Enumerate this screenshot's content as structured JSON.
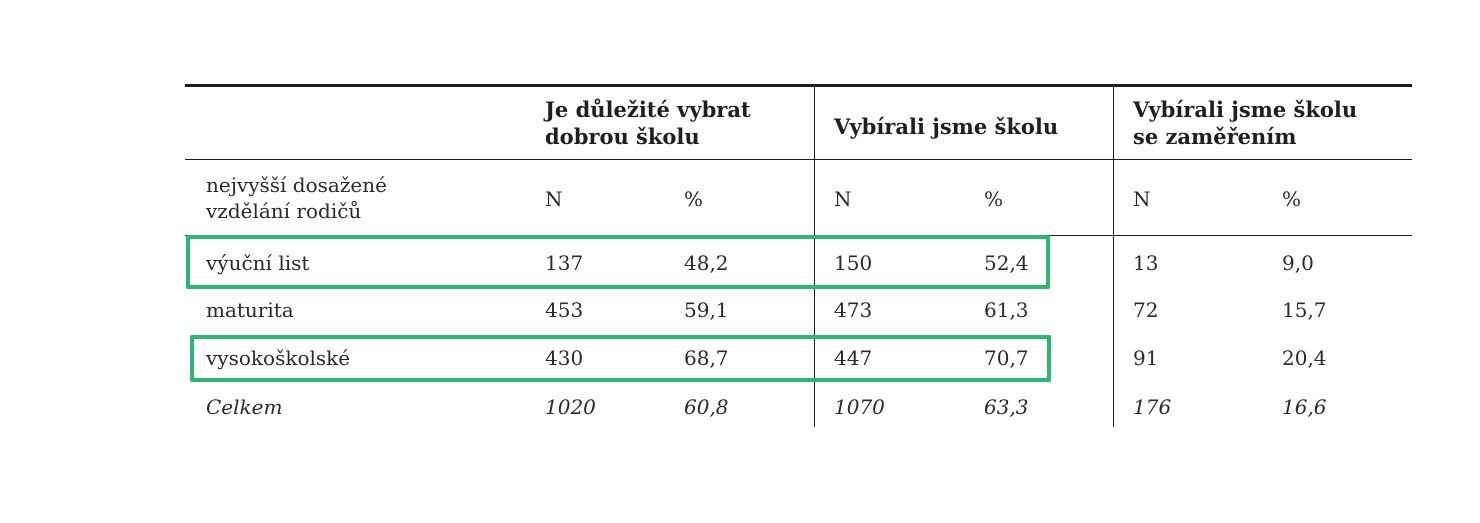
{
  "table": {
    "header": {
      "group1": [
        "Je důležité vybrat",
        "dobrou školu"
      ],
      "group2": [
        "Vybírali jsme školu"
      ],
      "group3": [
        "Vybírali jsme školu",
        "se zaměřením"
      ]
    },
    "subheader": {
      "row_label": [
        "nejvyšší dosažené",
        "vzdělání rodičů"
      ],
      "cols": [
        "N",
        "%",
        "N",
        "%",
        "N",
        "%"
      ]
    },
    "rows": [
      {
        "label": "výuční list",
        "cells": [
          "137",
          "48,2",
          "150",
          "52,4",
          "13",
          "9,0"
        ]
      },
      {
        "label": "maturita",
        "cells": [
          "453",
          "59,1",
          "473",
          "61,3",
          "72",
          "15,7"
        ]
      },
      {
        "label": "vysokoškolské",
        "cells": [
          "430",
          "68,7",
          "447",
          "70,7",
          "91",
          "20,4"
        ]
      },
      {
        "label": "Celkem",
        "cells": [
          "1020",
          "60,8",
          "1070",
          "63,3",
          "176",
          "16,6"
        ]
      }
    ],
    "highlight_color": "#2eb673"
  }
}
